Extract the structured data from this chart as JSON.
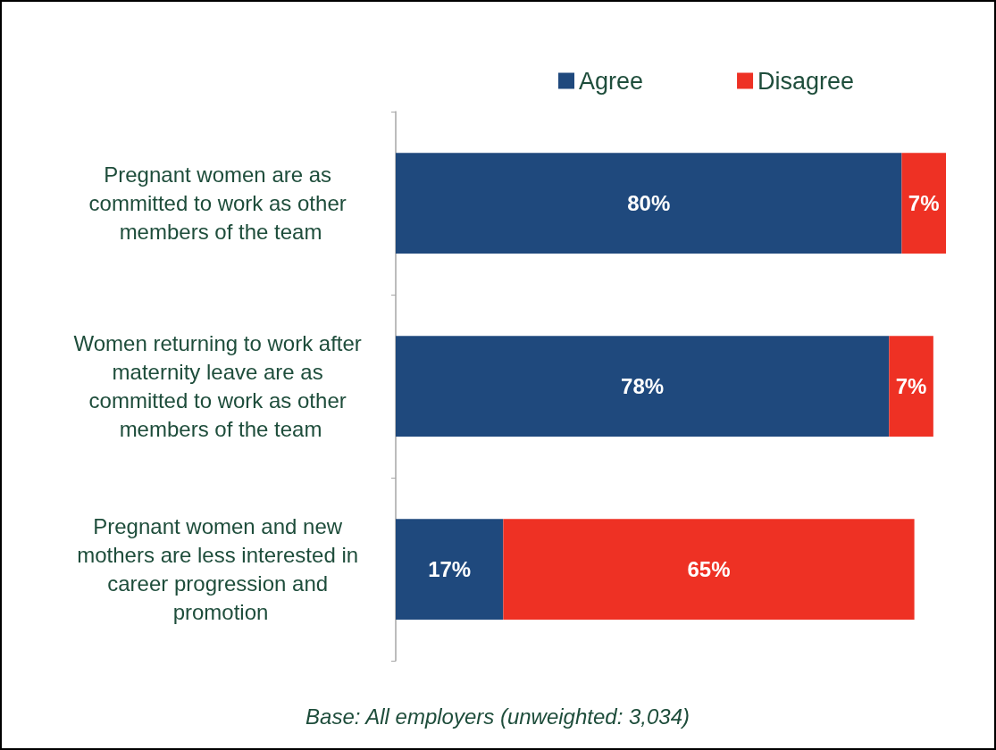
{
  "chart_data": {
    "type": "bar",
    "orientation": "horizontal",
    "stacked": true,
    "legend": "top",
    "grid": false,
    "categories": [
      "Pregnant women are as committed to work as other members of the team",
      "Women returning to work after maternity leave are as committed to work as other members of the team",
      "Pregnant women and new mothers are less interested in career progression and promotion"
    ],
    "series": [
      {
        "name": "Agree",
        "color": "#1f497d",
        "values": [
          80,
          78,
          17
        ],
        "value_labels": [
          "80%",
          "78%",
          "17%"
        ]
      },
      {
        "name": "Disagree",
        "color": "#ee3124",
        "values": [
          7,
          7,
          65
        ],
        "value_labels": [
          "7%",
          "7%",
          "65%"
        ]
      }
    ],
    "annotations": [
      "Base: All employers (unweighted: 3,034)"
    ]
  }
}
